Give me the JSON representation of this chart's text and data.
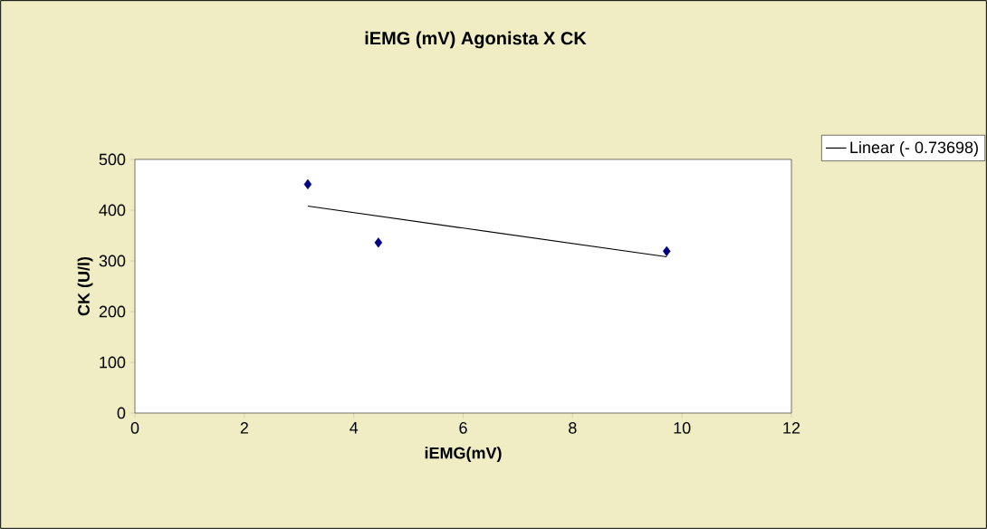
{
  "chart_data": {
    "type": "scatter",
    "title": "iEMG (mV) Agonista X CK",
    "xlabel": "iEMG(mV)",
    "ylabel": "CK (U/l)",
    "series": [
      {
        "color": "#000080",
        "marker": "diamond",
        "x": [
          3.16,
          4.45,
          9.72
        ],
        "values": [
          451,
          336,
          319
        ]
      },
      {
        "type": "line",
        "name": "Linear (- 0.73698)",
        "color": "#000000",
        "marker": "none",
        "x": [
          3.16,
          9.72
        ],
        "values": [
          408,
          308
        ]
      }
    ],
    "xlim": [
      0,
      12
    ],
    "ylim": [
      0,
      500
    ],
    "xticks": [
      0,
      2,
      4,
      6,
      8,
      10,
      12
    ],
    "yticks": [
      0,
      100,
      200,
      300,
      400,
      500
    ],
    "legend": "top right"
  }
}
